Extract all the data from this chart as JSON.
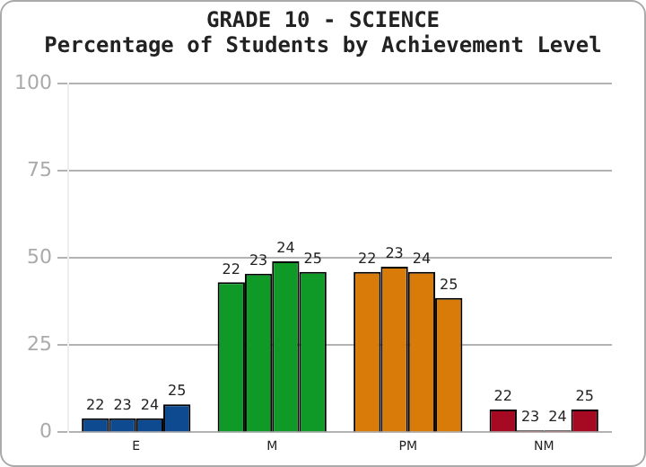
{
  "chart_data": {
    "type": "bar",
    "title": "GRADE 10 - SCIENCE",
    "subtitle": "Percentage of Students by Achievement Level",
    "categories": [
      "E",
      "M",
      "PM",
      "NM"
    ],
    "series": [
      {
        "name": "22",
        "colors": [
          "#0d4a8f",
          "#0f9a28",
          "#d97b08",
          "#a50a22"
        ],
        "values": [
          4,
          43,
          46,
          6.5
        ]
      },
      {
        "name": "23",
        "colors": [
          "#0d4a8f",
          "#0f9a28",
          "#d97b08",
          "#a50a22"
        ],
        "values": [
          4,
          45.5,
          47.5,
          0.5
        ]
      },
      {
        "name": "24",
        "colors": [
          "#0d4a8f",
          "#0f9a28",
          "#d97b08",
          "#a50a22"
        ],
        "values": [
          4,
          49,
          46,
          0.5
        ]
      },
      {
        "name": "25",
        "colors": [
          "#0d4a8f",
          "#0f9a28",
          "#d97b08",
          "#a50a22"
        ],
        "values": [
          8,
          46,
          38.5,
          6.5
        ]
      }
    ],
    "ylim": [
      0,
      100
    ],
    "yticks": [
      0,
      25,
      50,
      75,
      100
    ],
    "grid": "y",
    "legend": false
  }
}
